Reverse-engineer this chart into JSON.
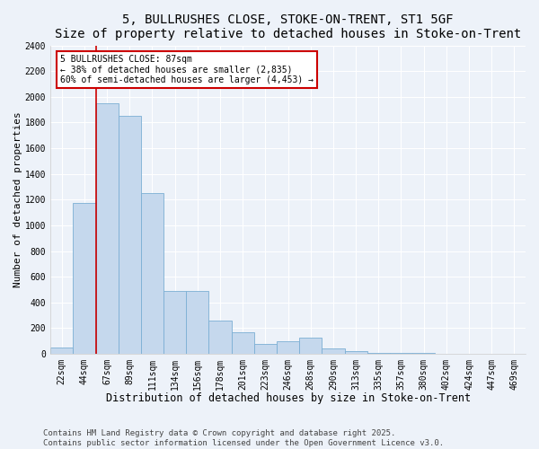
{
  "title": "5, BULLRUSHES CLOSE, STOKE-ON-TRENT, ST1 5GF",
  "subtitle": "Size of property relative to detached houses in Stoke-on-Trent",
  "xlabel": "Distribution of detached houses by size in Stoke-on-Trent",
  "ylabel": "Number of detached properties",
  "categories": [
    "22sqm",
    "44sqm",
    "67sqm",
    "89sqm",
    "111sqm",
    "134sqm",
    "156sqm",
    "178sqm",
    "201sqm",
    "223sqm",
    "246sqm",
    "268sqm",
    "290sqm",
    "313sqm",
    "335sqm",
    "357sqm",
    "380sqm",
    "402sqm",
    "424sqm",
    "447sqm",
    "469sqm"
  ],
  "values": [
    50,
    1175,
    1950,
    1850,
    1250,
    490,
    490,
    260,
    170,
    75,
    100,
    130,
    45,
    25,
    10,
    5,
    5,
    3,
    2,
    3,
    2
  ],
  "bar_color": "#c5d8ed",
  "bar_edge_color": "#7bafd4",
  "property_line_x": 1.5,
  "property_sqm": 87,
  "annotation_text": "5 BULLRUSHES CLOSE: 87sqm\n← 38% of detached houses are smaller (2,835)\n60% of semi-detached houses are larger (4,453) →",
  "annotation_box_color": "#ffffff",
  "annotation_box_edge_color": "#cc0000",
  "vline_color": "#cc0000",
  "ylim": [
    0,
    2400
  ],
  "yticks": [
    0,
    200,
    400,
    600,
    800,
    1000,
    1200,
    1400,
    1600,
    1800,
    2000,
    2200,
    2400
  ],
  "background_color": "#edf2f9",
  "grid_color": "#ffffff",
  "footer1": "Contains HM Land Registry data © Crown copyright and database right 2025.",
  "footer2": "Contains public sector information licensed under the Open Government Licence v3.0.",
  "title_fontsize": 10,
  "xlabel_fontsize": 8.5,
  "ylabel_fontsize": 8,
  "tick_fontsize": 7,
  "footer_fontsize": 6.5
}
